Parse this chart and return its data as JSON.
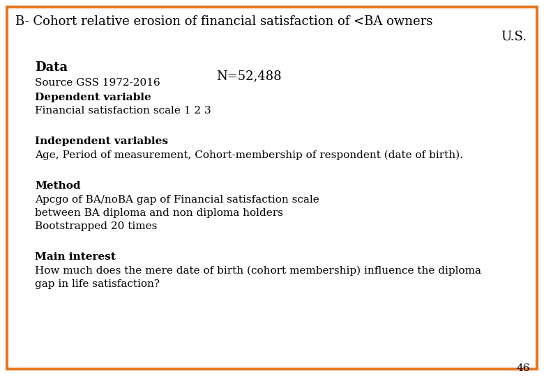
{
  "bg_color": "#ffffff",
  "border_color": "#e87722",
  "border_linewidth": 3,
  "title_line1": "B- Cohort relative erosion of financial satisfaction of <BA owners",
  "title_line2": "U.S.",
  "title_fontsize": 13,
  "data_label": "Data",
  "data_label_fontsize": 13,
  "source_text": "Source GSS 1972-2016",
  "source_fontsize": 11,
  "n_text": "N=52,488",
  "n_fontsize": 13,
  "dep_var_label": "Dependent variable",
  "dep_var_fontsize": 11,
  "fin_sat_text": "Financial satisfaction scale 1 2 3",
  "fin_sat_fontsize": 11,
  "indep_label": "Independent variables",
  "indep_fontsize": 11,
  "indep_text": "Age, Period of measurement, Cohort-membership of respondent (date of birth).",
  "indep_text_fontsize": 11,
  "method_label": "Method",
  "method_label_fontsize": 11,
  "method_line1": "Apcgo of BA/noBA gap of Financial satisfaction scale",
  "method_line2": "between BA diploma and non diploma holders",
  "method_line3": "Bootstrapped 20 times",
  "method_fontsize": 11,
  "main_label": "Main interest",
  "main_label_fontsize": 11,
  "main_line1": "How much does the mere date of birth (cohort membership) influence the diploma",
  "main_line2": "gap in life satisfaction?",
  "main_text_fontsize": 11,
  "page_number": "46",
  "page_fontsize": 11,
  "font_family": "serif"
}
